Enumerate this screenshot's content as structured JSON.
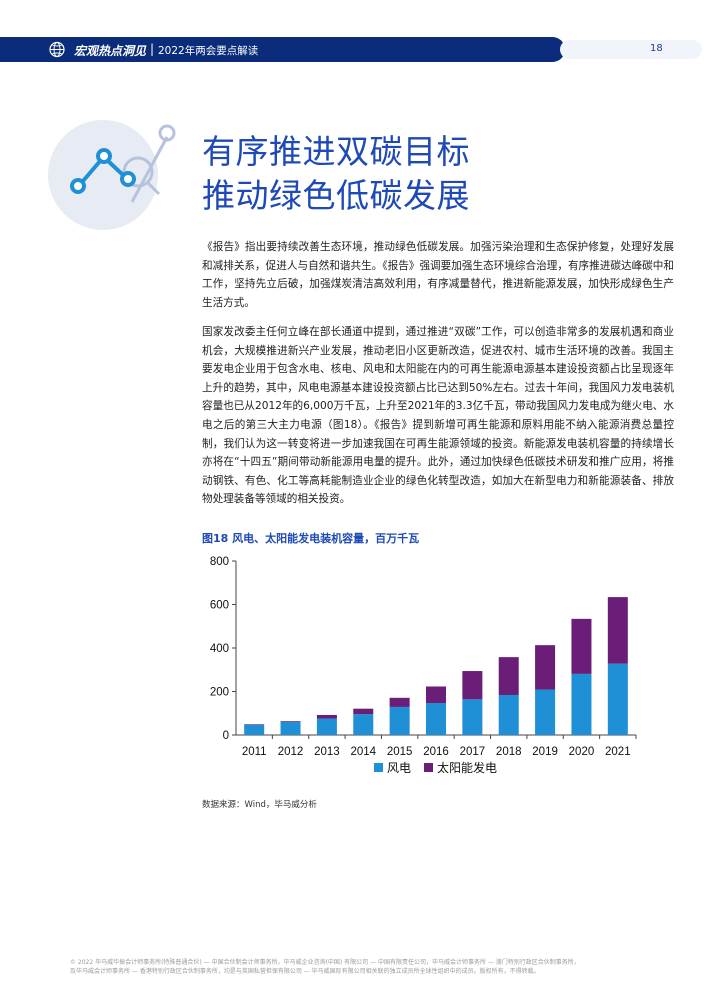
{
  "header": {
    "section": "宏观热点洞见",
    "separator": "|",
    "subtitle": "2022年两会要点解读",
    "page_number": "18"
  },
  "title": {
    "line1": "有序推进双碳目标",
    "line2": "推动绿色低碳发展"
  },
  "paragraphs": {
    "p1": "《报告》指出要持续改善生态环境，推动绿色低碳发展。加强污染治理和生态保护修复，处理好发展和减排关系，促进人与自然和谐共生。《报告》强调要加强生态环境综合治理，有序推进碳达峰碳中和工作，坚持先立后破，加强煤炭清洁高效利用，有序减量替代，推进新能源发展，加快形成绿色生产生活方式。",
    "p2": "国家发改委主任何立峰在部长通道中提到，通过推进“双碳”工作，可以创造非常多的发展机遇和商业机会，大规模推进新兴产业发展，推动老旧小区更新改造，促进农村、城市生活环境的改善。我国主要发电企业用于包含水电、核电、风电和太阳能在内的可再生能源电源基本建设投资额占比呈现逐年上升的趋势，其中，风电电源基本建设投资额占比已达到50%左右。过去十年间，我国风力发电装机容量也已从2012年的6,000万千瓦，上升至2021年的3.3亿千瓦，带动我国风力发电成为继火电、水电之后的第三大主力电源（图18）。《报告》提到新增可再生能源和原料用能不纳入能源消费总量控制，我们认为这一转变将进一步加速我国在可再生能源领域的投资。新能源发电装机容量的持续增长亦将在“十四五”期间带动新能源用电量的提升。此外，通过加快绿色低碳技术研发和推广应用，将推动钢铁、有色、化工等高耗能制造业企业的绿色化转型改造，如加大在新型电力和新能源装备、排放物处理装备等领域的相关投资。"
  },
  "figure": {
    "caption": "图18  风电、太阳能发电装机容量，百万千瓦",
    "source": "数据来源：Wind，毕马威分析"
  },
  "chart_data": {
    "type": "bar",
    "stacked": true,
    "title": "",
    "xlabel": "",
    "ylabel": "",
    "categories": [
      "2011",
      "2012",
      "2013",
      "2014",
      "2015",
      "2016",
      "2017",
      "2018",
      "2019",
      "2020",
      "2021"
    ],
    "ylim": [
      0,
      800
    ],
    "yticks": [
      0,
      200,
      400,
      600,
      800
    ],
    "grid": false,
    "legend_position": "bottom",
    "series": [
      {
        "name": "风电",
        "color": "#1f8fd6",
        "values": [
          46,
          61,
          76,
          96,
          129,
          147,
          164,
          184,
          209,
          281,
          328
        ]
      },
      {
        "name": "太阳能发电",
        "color": "#6a1e78",
        "values": [
          3,
          3,
          16,
          25,
          42,
          76,
          130,
          174,
          204,
          253,
          306
        ]
      }
    ]
  },
  "footer": {
    "line1": "© 2022 毕马威华振会计师事务所(特殊普通合伙) — 中国合伙制会计师事务所，毕马威企业咨询(中国) 有限公司 — 中国有限责任公司，毕马威会计师事务所 — 澳门特别行政区合伙制事务所，",
    "line2": "及毕马威会计师事务所 — 香港特别行政区合伙制事务所，均是与英国私营担保有限公司 — 毕马威国际有限公司相关联的独立成员所全球性组织中的成员。版权所有，不得转载。"
  },
  "colors": {
    "brand_navy": "#0a2c7a",
    "title_blue": "#1e49b6",
    "wind": "#1f8fd6",
    "solar": "#6a1e78"
  }
}
